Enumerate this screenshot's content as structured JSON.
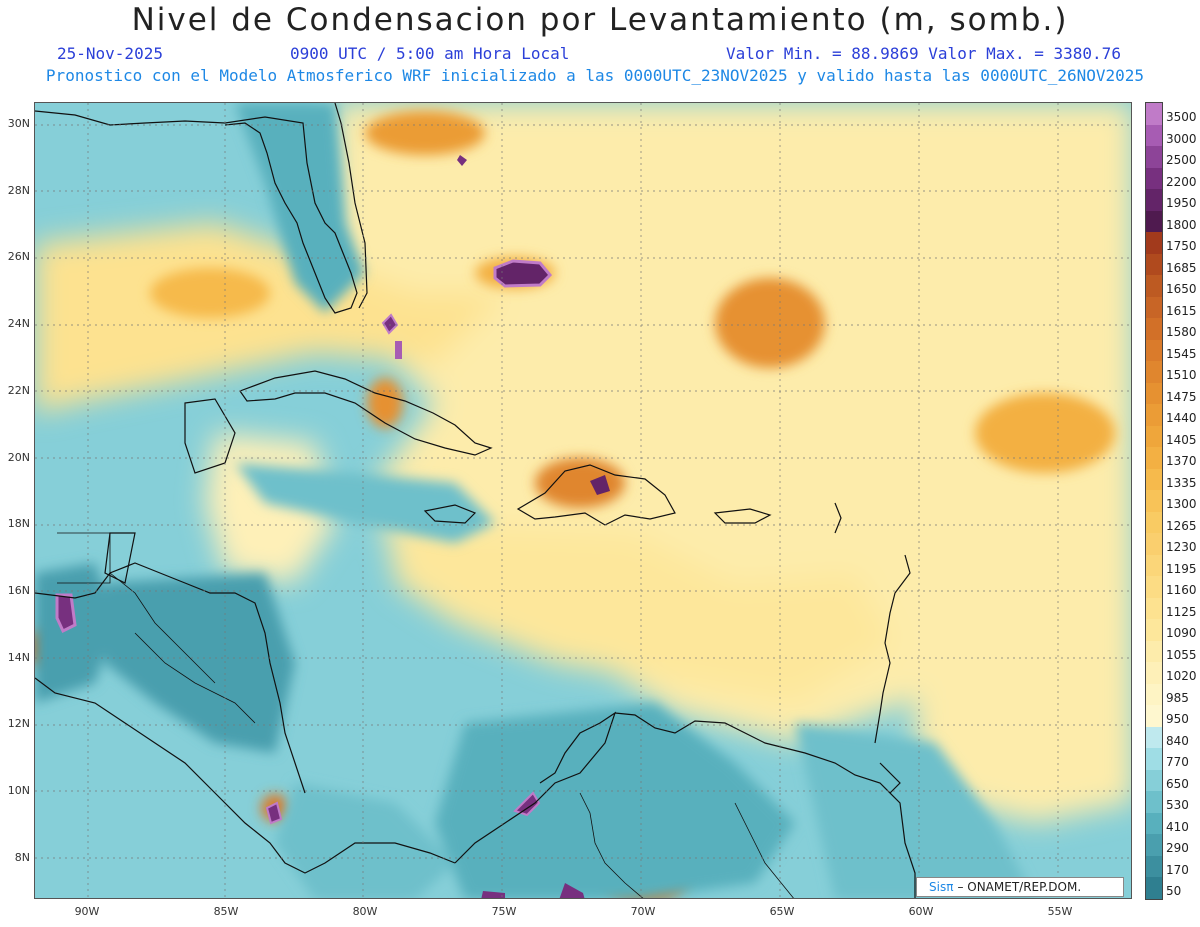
{
  "title": "Nivel de Condensacion por Levantamiento (m, somb.)",
  "date": "25-Nov-2025",
  "time": "0900 UTC / 5:00 am Hora Local",
  "minmax": "Valor Min. = 88.9869   Valor Max. = 3380.76",
  "model_line": "Pronostico con el Modelo Atmosferico WRF inicializado a las 0000UTC_23NOV2025 y valido hasta las  0000UTC_26NOV2025",
  "credit_sis": "Sisπ",
  "credit_rest": "– ONAMET/REP.DOM.",
  "lat_labels": [
    "30N",
    "28N",
    "26N",
    "24N",
    "22N",
    "20N",
    "18N",
    "16N",
    "14N",
    "12N",
    "10N",
    "8N"
  ],
  "lon_labels": [
    "90W",
    "85W",
    "80W",
    "75W",
    "70W",
    "65W",
    "60W",
    "55W"
  ],
  "legend": {
    "labels": [
      "3500",
      "3000",
      "2500",
      "2200",
      "1950",
      "1800",
      "1750",
      "1685",
      "1650",
      "1615",
      "1580",
      "1545",
      "1510",
      "1475",
      "1440",
      "1405",
      "1370",
      "1335",
      "1300",
      "1265",
      "1230",
      "1195",
      "1160",
      "1125",
      "1090",
      "1055",
      "1020",
      "985",
      "950",
      "840",
      "770",
      "650",
      "530",
      "410",
      "290",
      "170",
      "50"
    ],
    "colors": [
      "#c07bc8",
      "#a75cb3",
      "#8d4498",
      "#77307f",
      "#632468",
      "#4f1a4f",
      "#a23a1c",
      "#b04a1e",
      "#bd5a22",
      "#c86526",
      "#d27028",
      "#da7b2b",
      "#e0862e",
      "#e69131",
      "#eb9c36",
      "#ef a63b",
      "#f3b043",
      "#f6ba4c",
      "#f8c358",
      "#f9cb63",
      "#facf6e",
      "#fbd679",
      "#fcdc84",
      "#fde290",
      "#fde79b",
      "#fdecab",
      "#fef0b8",
      "#fef4c4",
      "#fef7cf",
      "#bfe9ee",
      "#9fdde5",
      "#86cfd8",
      "#6ec0cb",
      "#58b0bd",
      "#4a9fae",
      "#3c8f9f",
      "#2f7f90"
    ]
  }
}
